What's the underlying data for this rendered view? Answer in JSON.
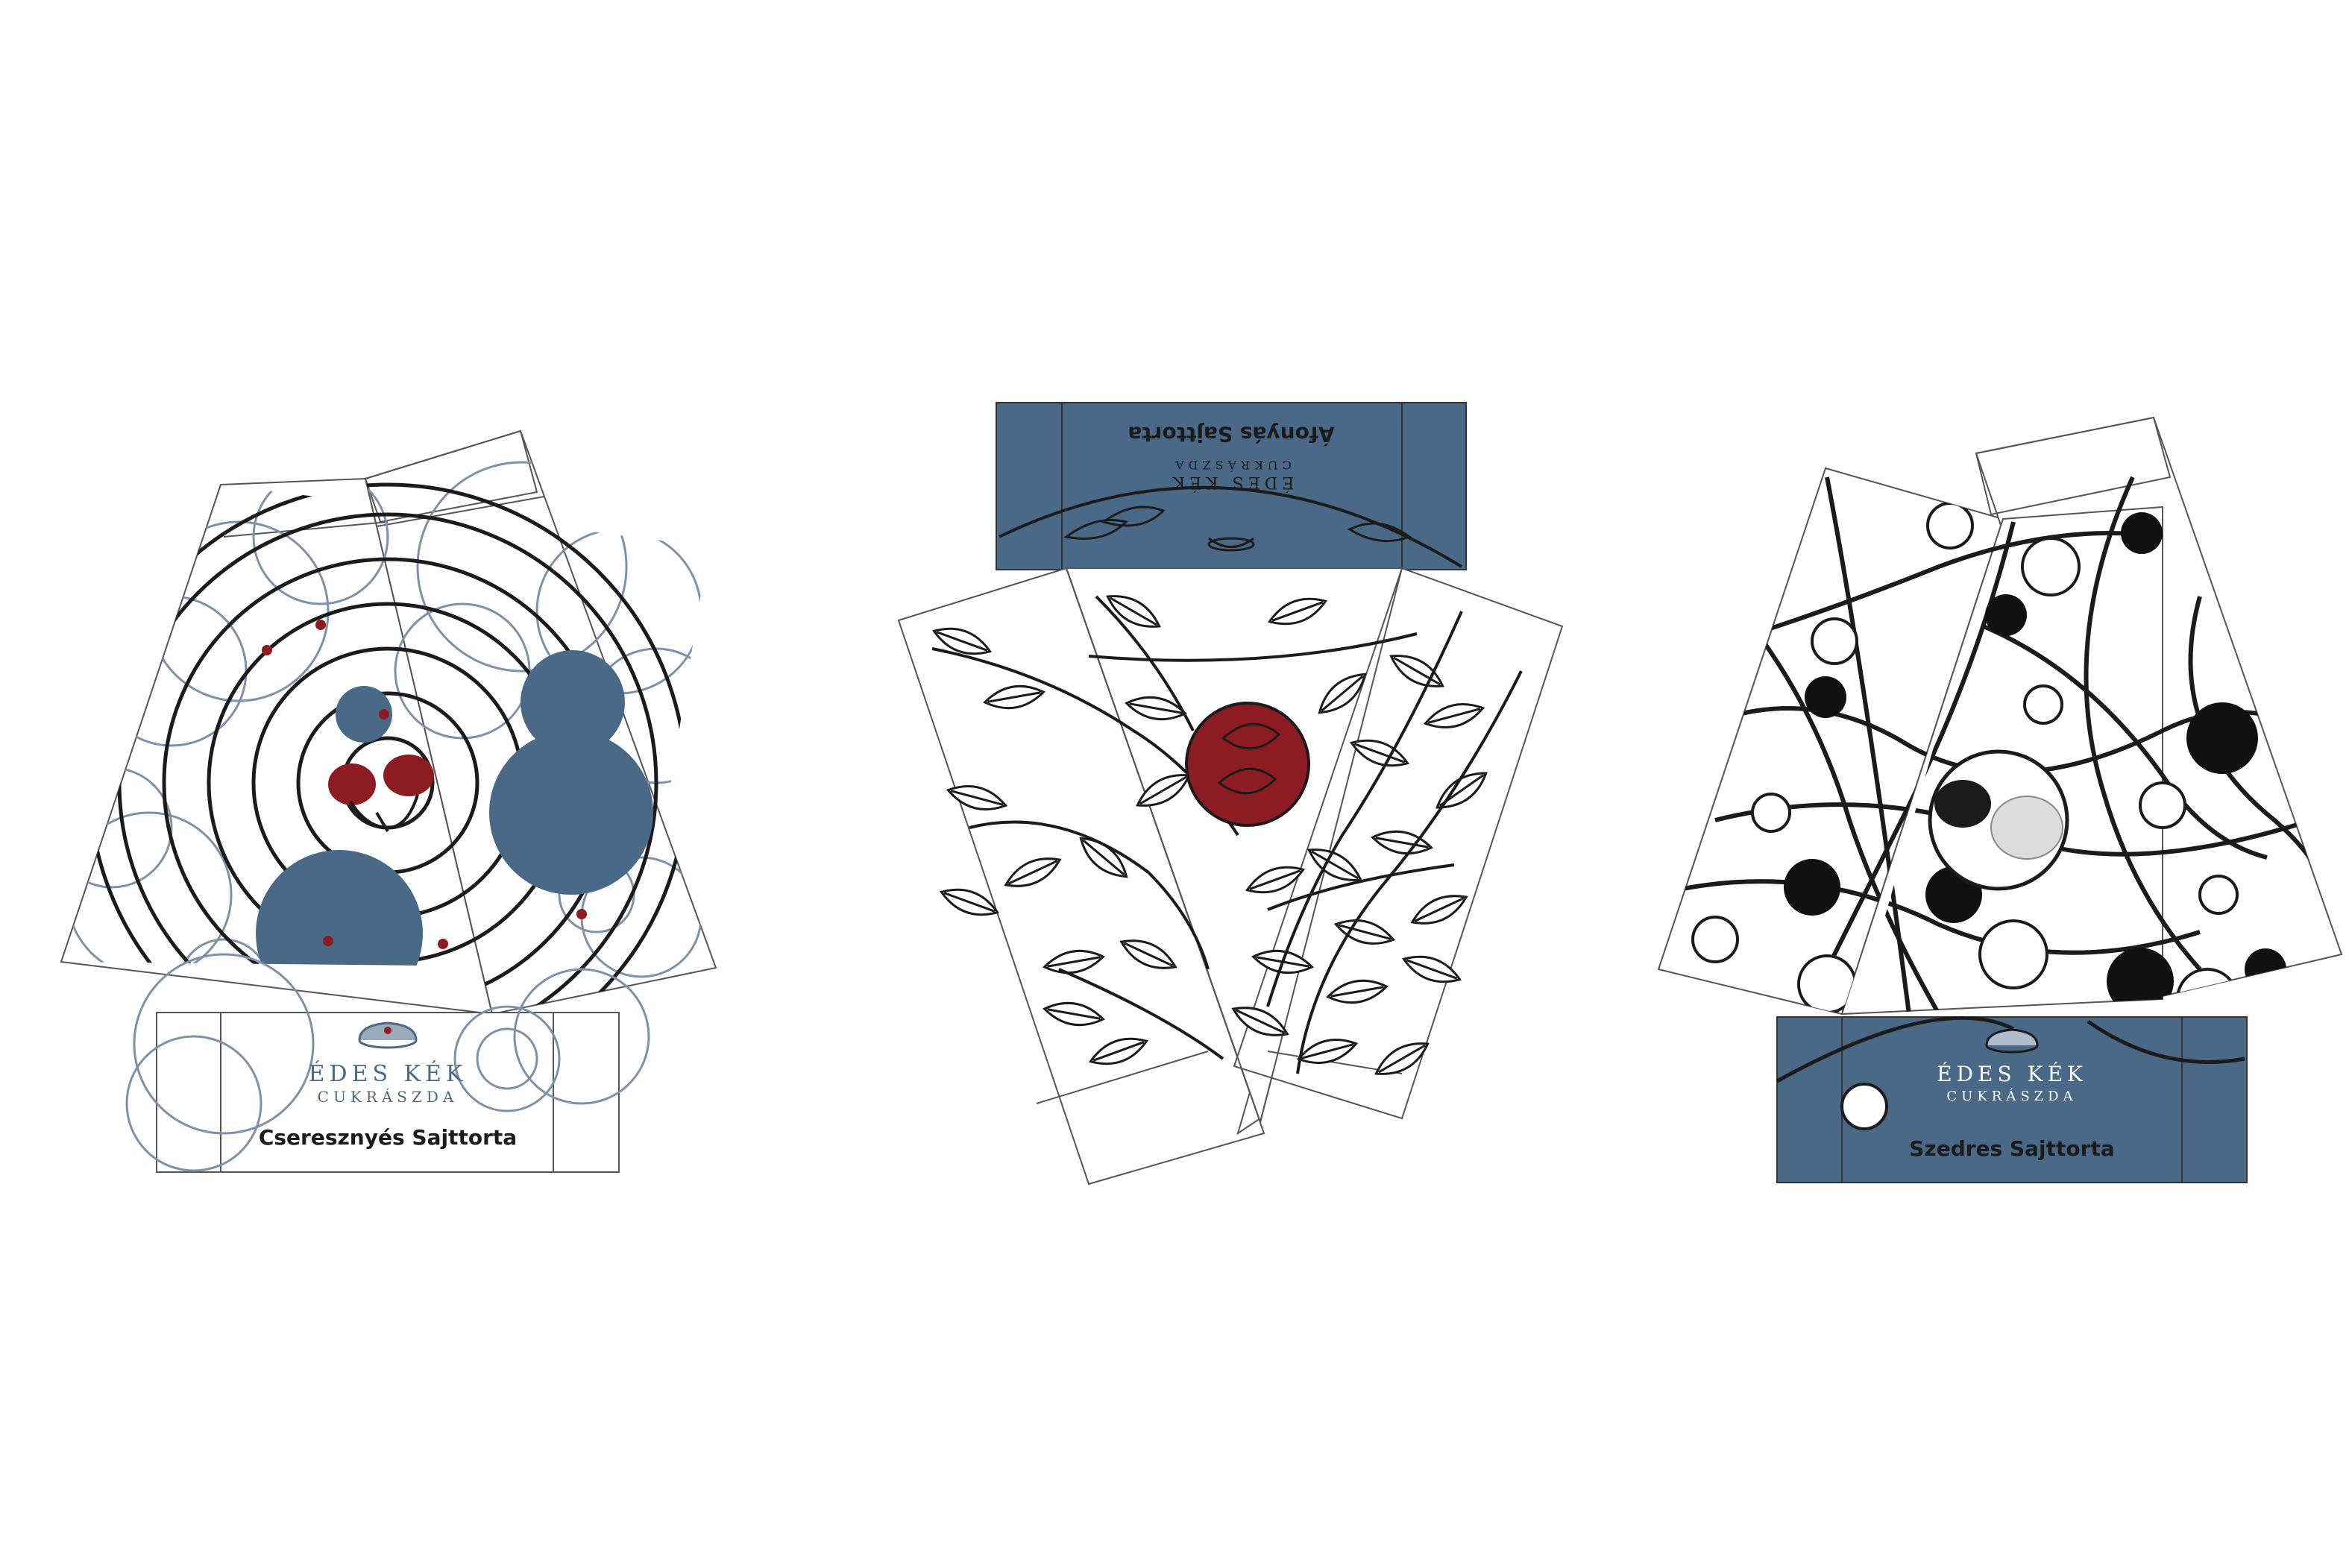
{
  "colors": {
    "blue": "#4a6986",
    "red": "#8c1c22",
    "ink": "#1b1b1b",
    "outline": "#555555",
    "ring_light": "#7d91a8"
  },
  "boxes": [
    {
      "id": "cherry",
      "product_name": "Cseresznyés Sajttorta",
      "logo_line1": "ÉDES KÉK",
      "logo_line2": "CUKRÁSZDA",
      "pattern": "concentric-circles",
      "icon": "cherry-icon"
    },
    {
      "id": "blueberry",
      "product_name": "Áfonyás Sajttorta",
      "logo_line1": "ÉDES KÉK",
      "logo_line2": "CUKRÁSZDA",
      "pattern": "leaves",
      "icon": "berry-leaf-icon"
    },
    {
      "id": "blackberry",
      "product_name": "Szedres Sajttorta",
      "logo_line1": "ÉDES KÉK",
      "logo_line2": "CUKRÁSZDA",
      "pattern": "lines-and-dots",
      "icon": "blackberry-icon"
    }
  ]
}
